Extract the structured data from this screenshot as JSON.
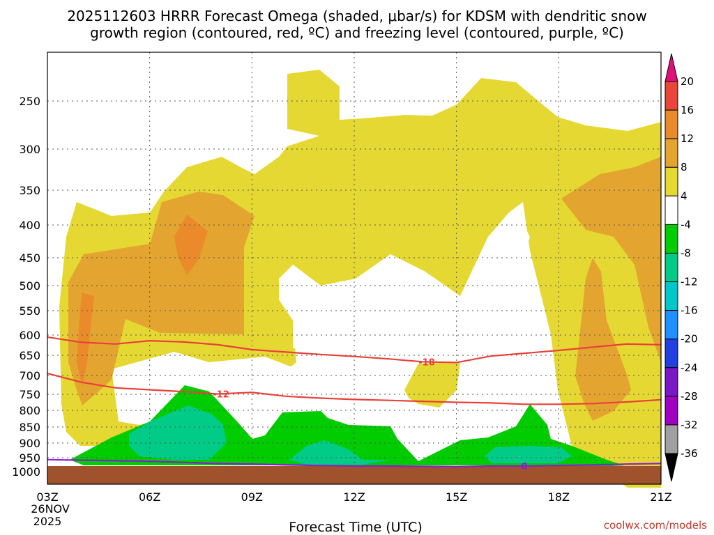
{
  "chart_data": {
    "type": "contour",
    "title_line1": "2025112603 HRRR Forecast Omega (shaded, μbar/s) for KDSM with dendritic snow",
    "title_line2": "growth region (contoured, red, ºC) and freezing level (contoured, purple, ºC)",
    "xlabel": "Forecast Time (UTC)",
    "credit": "coolwx.com/models",
    "x_ticks": [
      "03Z",
      "06Z",
      "09Z",
      "12Z",
      "15Z",
      "18Z",
      "21Z"
    ],
    "x_tick_hours": [
      3,
      6,
      9,
      12,
      15,
      18,
      21
    ],
    "x_start_date": "26NOV",
    "x_start_year": "2025",
    "y_ticks": [
      250,
      300,
      350,
      400,
      450,
      500,
      550,
      600,
      650,
      700,
      750,
      800,
      850,
      900,
      950,
      1000
    ],
    "y_axis": "pressure (hPa), inverted",
    "grid": true,
    "colorbar": {
      "labels": [
        20,
        16,
        12,
        8,
        4,
        -4,
        -8,
        -12,
        -16,
        -20,
        -24,
        -28,
        -32,
        -36
      ],
      "colors": [
        "#f03060",
        "#e8463a",
        "#ea8a2a",
        "#e3a530",
        "#e6d832",
        "#ffffff",
        "#00cc00",
        "#00cc88",
        "#00c8c8",
        "#1e90ff",
        "#2040e0",
        "#7a18c8",
        "#a000c0",
        "#a0a0a0",
        "#000000"
      ],
      "top_color": "#e0107a",
      "bottom_color": "#000000"
    },
    "contours": [
      {
        "label": "-18",
        "color": "#e8403a",
        "points": [
          [
            3,
            605
          ],
          [
            4,
            618
          ],
          [
            5,
            622
          ],
          [
            6,
            614
          ],
          [
            7,
            617
          ],
          [
            8,
            624
          ],
          [
            9,
            636
          ],
          [
            10,
            642
          ],
          [
            11,
            648
          ],
          [
            12,
            653
          ],
          [
            13,
            659
          ],
          [
            14,
            666
          ],
          [
            15,
            668
          ],
          [
            16,
            652
          ],
          [
            17,
            645
          ],
          [
            18,
            638
          ],
          [
            19,
            630
          ],
          [
            20,
            622
          ],
          [
            21,
            624
          ]
        ]
      },
      {
        "label": "-12",
        "color": "#e8403a",
        "points": [
          [
            3,
            695
          ],
          [
            4,
            718
          ],
          [
            5,
            733
          ],
          [
            6,
            738
          ],
          [
            7,
            743
          ],
          [
            8,
            749
          ],
          [
            9,
            745
          ],
          [
            10,
            756
          ],
          [
            11,
            762
          ],
          [
            12,
            766
          ],
          [
            13,
            769
          ],
          [
            14,
            772
          ],
          [
            15,
            775
          ],
          [
            16,
            777
          ],
          [
            17,
            781
          ],
          [
            18,
            781
          ],
          [
            19,
            779
          ],
          [
            20,
            774
          ],
          [
            21,
            767
          ]
        ]
      },
      {
        "label": "0",
        "color": "#8a1ed2",
        "points": [
          [
            3,
            957
          ],
          [
            4,
            959
          ],
          [
            5,
            961
          ],
          [
            6,
            963
          ],
          [
            7,
            967
          ],
          [
            8,
            971
          ],
          [
            9,
            973
          ],
          [
            10,
            976
          ],
          [
            11,
            978
          ],
          [
            12,
            980
          ],
          [
            13,
            980
          ],
          [
            14,
            981
          ],
          [
            15,
            982
          ],
          [
            16,
            980
          ],
          [
            17,
            980
          ],
          [
            18,
            978
          ],
          [
            19,
            976
          ],
          [
            20,
            973
          ],
          [
            21,
            971
          ]
        ]
      }
    ]
  }
}
